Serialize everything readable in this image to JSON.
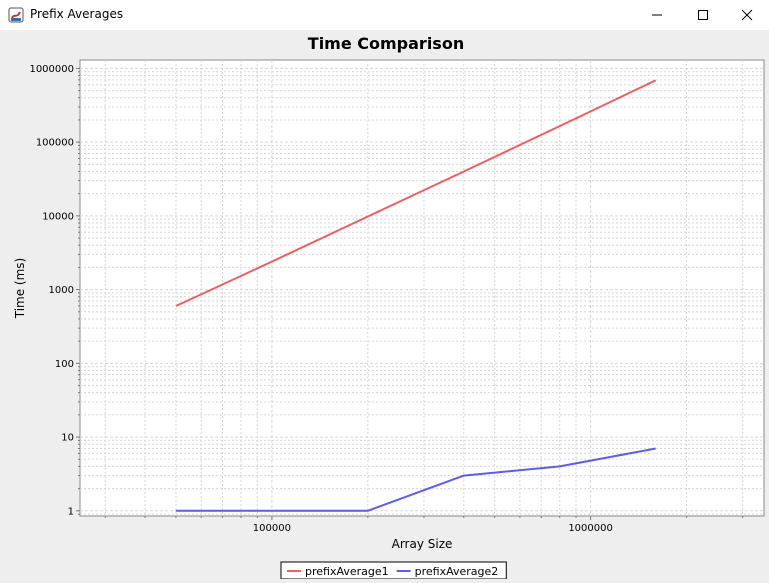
{
  "window": {
    "title": "Prefix Averages",
    "icon": "java-app-icon",
    "controls": [
      "minimize-icon",
      "maximize-icon",
      "close-icon"
    ]
  },
  "chart_data": {
    "type": "line",
    "title": "Time Comparison",
    "xlabel": "Array Size",
    "ylabel": "Time (ms)",
    "x_scale": "log",
    "y_scale": "log",
    "xlim": [
      25000,
      3500000
    ],
    "ylim": [
      0.85,
      1300000
    ],
    "x_tick_labels": [
      "100000",
      "1000000"
    ],
    "y_tick_labels": [
      "1",
      "10",
      "100",
      "1000",
      "10000",
      "100000",
      "1000000"
    ],
    "grid": true,
    "legend": "bottom",
    "series": [
      {
        "name": "prefixAverage1",
        "color": "#f25c5c",
        "x": [
          50000,
          100000,
          200000,
          400000,
          800000,
          1600000
        ],
        "y": [
          600,
          2400,
          9800,
          40000,
          165000,
          690000
        ]
      },
      {
        "name": "prefixAverage2",
        "color": "#5c5cf2",
        "x": [
          50000,
          100000,
          200000,
          400000,
          800000,
          1600000
        ],
        "y": [
          1,
          1,
          1,
          3,
          4,
          7
        ]
      }
    ]
  }
}
